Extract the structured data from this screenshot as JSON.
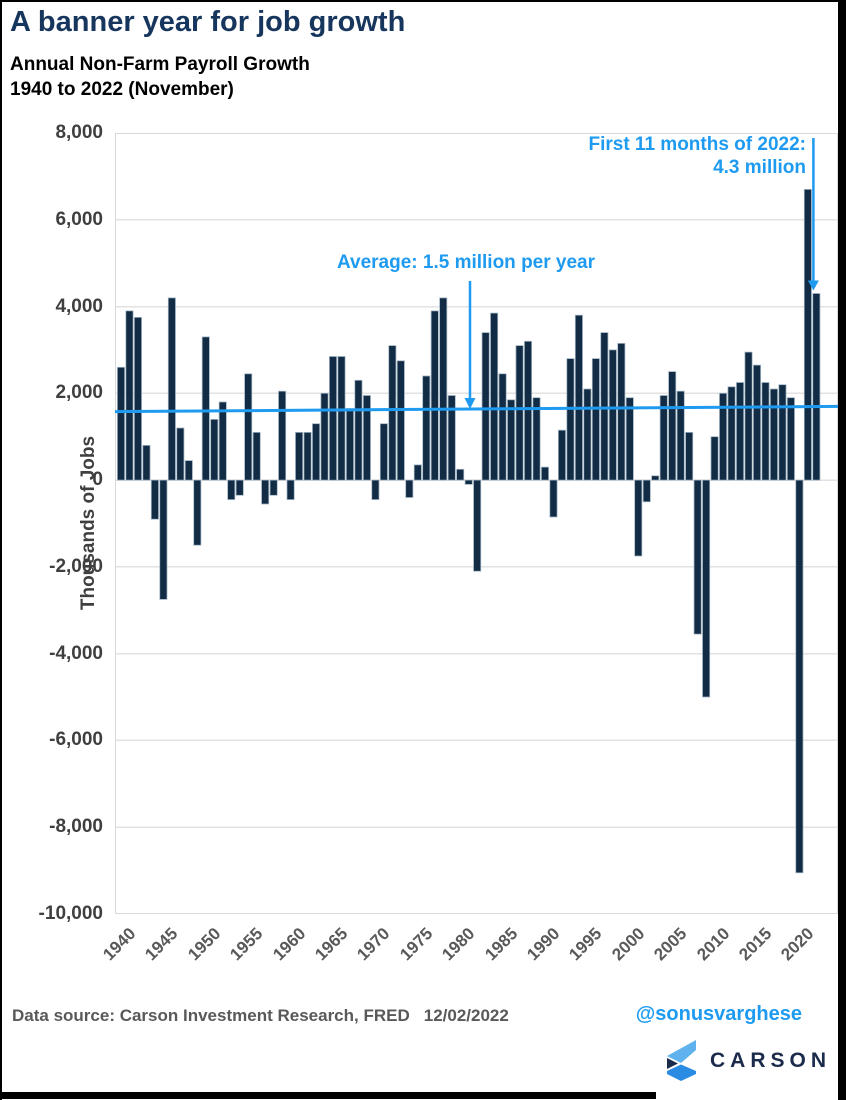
{
  "header": {
    "title": "A banner year for job growth",
    "subtitle_line1": "Annual Non-Farm Payroll Growth",
    "subtitle_line2": "1940 to 2022 (November)"
  },
  "chart_data": {
    "type": "bar",
    "title": "A banner year for job growth",
    "subtitle": "Annual Non-Farm Payroll Growth 1940 to 2022 (November)",
    "ylabel": "Thousands of Jobs",
    "ylim": [
      -10000,
      8000
    ],
    "ytick_step": 2000,
    "grid": true,
    "legend": "none",
    "start_year": 1940,
    "end_year": 2022,
    "x_tick_years": [
      1940,
      1945,
      1950,
      1955,
      1960,
      1965,
      1970,
      1975,
      1980,
      1985,
      1990,
      1995,
      2000,
      2005,
      2010,
      2015,
      2020
    ],
    "values": [
      2600,
      3900,
      3750,
      800,
      -900,
      -2750,
      4200,
      1200,
      450,
      -1500,
      3300,
      1400,
      1800,
      -450,
      -350,
      2450,
      1100,
      -550,
      -350,
      2050,
      -450,
      1100,
      1100,
      1300,
      2000,
      2850,
      2850,
      1650,
      2300,
      1950,
      -450,
      1300,
      3100,
      2750,
      -400,
      350,
      2400,
      3900,
      4200,
      1950,
      250,
      -100,
      -2100,
      3400,
      3850,
      2450,
      1850,
      3100,
      3200,
      1900,
      300,
      -850,
      1150,
      2800,
      3800,
      2100,
      2800,
      3400,
      3000,
      3150,
      1900,
      -1750,
      -500,
      100,
      1950,
      2500,
      2050,
      1100,
      -3550,
      -5000,
      1000,
      2000,
      2150,
      2250,
      2950,
      2650,
      2250,
      2100,
      2200,
      1900,
      -9050,
      6700,
      4300
    ],
    "average_line": {
      "label": "Average: 1.5 million per year",
      "value_start": 1580,
      "value_end": 1700
    },
    "annotation_2022": {
      "line1": "First 11 months of 2022:",
      "line2": "4.3 million",
      "target_year": 2022,
      "value": 4300
    }
  },
  "footer": {
    "source_label": "Data source: Carson Investment Research, FRED",
    "date": "12/02/2022",
    "handle": "@sonusvarghese",
    "brand": "CARSON"
  },
  "colors": {
    "title_navy": "#17365D",
    "bar_fill": "#132C45",
    "bar_stroke": "#9FB3C2",
    "accent_blue": "#1E9BF0",
    "grid": "#E2E2E2",
    "plot_border": "#D9D9D9",
    "axis_text": "#3F3F3F",
    "xtick_text": "#595959",
    "brand_navy": "#1B2B4B",
    "logo_light_blue": "#5FB2EE",
    "logo_mid_blue": "#2B8BE2"
  }
}
